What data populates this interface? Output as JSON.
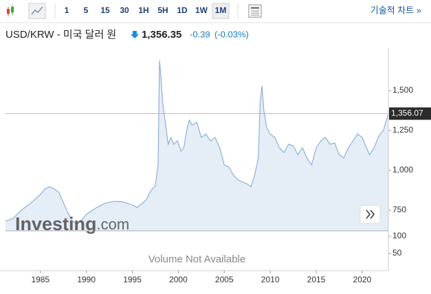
{
  "toolbar": {
    "intervals": [
      "1",
      "5",
      "15",
      "30",
      "1H",
      "5H",
      "1D",
      "1W",
      "1M"
    ],
    "selected": "1M",
    "technical_chart": "기술적 차트 »"
  },
  "header": {
    "symbol": "USD/KRW - 미국 달러 원",
    "price": "1,356.35",
    "change": "-0.39",
    "change_pct": "(-0.03%)"
  },
  "watermark": {
    "brand": "Investing",
    "suffix": ".com"
  },
  "chart_data": {
    "type": "area",
    "series": [
      {
        "name": "USD/KRW",
        "color": "#8fb0d6",
        "fill": "#e5edf7",
        "x": [
          1981.2,
          1982,
          1983,
          1984,
          1985,
          1985.5,
          1986,
          1986.5,
          1987,
          1987.5,
          1988,
          1988.5,
          1989,
          1989.5,
          1990,
          1991,
          1992,
          1993,
          1994,
          1995,
          1995.5,
          1996,
          1996.5,
          1997,
          1997.5,
          1997.8,
          1997.95,
          1998.1,
          1998.3,
          1998.6,
          1998.9,
          1999.2,
          1999.5,
          1999.9,
          2000.3,
          2000.6,
          2000.9,
          2001.2,
          2001.5,
          2002,
          2002.5,
          2003,
          2003.5,
          2004,
          2004.5,
          2005,
          2005.5,
          2006,
          2006.5,
          2007,
          2007.5,
          2007.9,
          2008.3,
          2008.7,
          2008.9,
          2009.1,
          2009.3,
          2009.6,
          2010,
          2010.5,
          2011,
          2011.5,
          2012,
          2012.5,
          2013,
          2013.5,
          2014,
          2014.5,
          2015,
          2015.5,
          2016,
          2016.5,
          2017,
          2017.5,
          2018,
          2018.5,
          2019,
          2019.5,
          2020,
          2020.3,
          2020.8,
          2021.3,
          2021.8,
          2022.3,
          2022.85
        ],
        "values": [
          681,
          698,
          754,
          797,
          849,
          884,
          897,
          884,
          862,
          797,
          733,
          681,
          664,
          690,
          724,
          763,
          793,
          806,
          802,
          784,
          767,
          789,
          815,
          871,
          905,
          1034,
          1690,
          1595,
          1422,
          1293,
          1164,
          1207,
          1164,
          1185,
          1121,
          1142,
          1250,
          1315,
          1284,
          1302,
          1207,
          1228,
          1185,
          1207,
          1142,
          1034,
          1021,
          970,
          940,
          927,
          914,
          897,
          970,
          1078,
          1422,
          1530,
          1379,
          1271,
          1228,
          1207,
          1142,
          1112,
          1164,
          1155,
          1099,
          1142,
          1078,
          1034,
          1142,
          1185,
          1207,
          1164,
          1172,
          1099,
          1078,
          1142,
          1185,
          1228,
          1207,
          1164,
          1099,
          1142,
          1216,
          1250,
          1356
        ]
      }
    ],
    "price_line": {
      "value": 1356.07,
      "label": "1,356.07",
      "color": "#e8a0a0"
    },
    "xlim": [
      1981.2,
      2022.85
    ],
    "xticks": [
      1985,
      1990,
      1995,
      2000,
      2005,
      2010,
      2015,
      2020
    ],
    "ylim": [
      621,
      1724
    ],
    "yticks": [
      750,
      {
        "value": 1000,
        "label": "1,000"
      },
      {
        "value": 1250,
        "label": "1,250"
      },
      {
        "value": 1500,
        "label": "1,500"
      }
    ],
    "volume": {
      "note": "Volume Not Available",
      "ylim": [
        0,
        116
      ],
      "yticks": [
        50,
        100
      ]
    },
    "grid": false
  }
}
